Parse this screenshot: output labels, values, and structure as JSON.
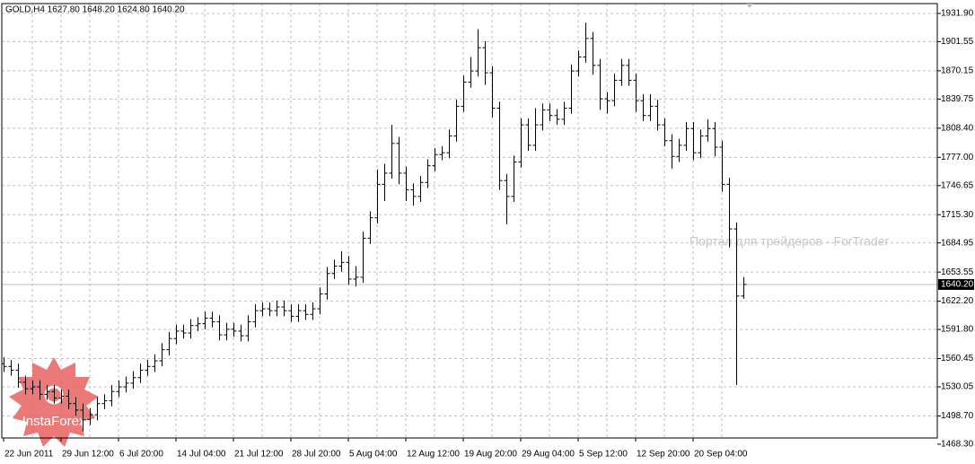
{
  "chart_data": {
    "type": "ohlc",
    "header": "GOLD,H4  1627.80 1648.20 1624.80 1640.20",
    "watermark": "Портал для трейдеров - ForTrader",
    "logo": "InstaForex",
    "categories": [
      "22 Jun 2011",
      null,
      null,
      null,
      null,
      null,
      null,
      null,
      "29 Jun 12:00",
      null,
      null,
      null,
      null,
      null,
      null,
      null,
      "6 Jul 20:00",
      null,
      null,
      null,
      null,
      null,
      null,
      null,
      "14 Jul 04:00",
      null,
      null,
      null,
      null,
      null,
      null,
      null,
      "21 Jul 12:00",
      null,
      null,
      null,
      null,
      null,
      null,
      null,
      "28 Jul 20:00",
      null,
      null,
      null,
      null,
      null,
      null,
      null,
      "5 Aug 04:00",
      null,
      null,
      null,
      null,
      null,
      null,
      null,
      "12 Aug 12:00",
      null,
      null,
      null,
      null,
      null,
      null,
      null,
      "19 Aug 20:00",
      null,
      null,
      null,
      null,
      null,
      null,
      null,
      "29 Aug 04:00",
      null,
      null,
      null,
      null,
      null,
      null,
      null,
      "5 Sep 12:00",
      null,
      null,
      null,
      null,
      null,
      null,
      null,
      "12 Sep 20:00",
      null,
      null,
      null,
      null,
      null,
      null,
      null,
      "20 Sep 04:00",
      null,
      null,
      null,
      null,
      null,
      null,
      null
    ],
    "open": [
      1555,
      1552,
      1548,
      1535,
      1528,
      1530,
      1522,
      1525,
      1518,
      1520,
      1512,
      1505,
      1495,
      1500,
      1512,
      1515,
      1525,
      1530,
      1534,
      1540,
      1548,
      1552,
      1558,
      1570,
      1582,
      1590,
      1588,
      1596,
      1598,
      1604,
      1600,
      1586,
      1592,
      1590,
      1585,
      1600,
      1612,
      1614,
      1612,
      1616,
      1612,
      1606,
      1612,
      1608,
      1614,
      1630,
      1652,
      1660,
      1664,
      1646,
      1648,
      1690,
      1712,
      1748,
      1760,
      1792,
      1760,
      1742,
      1735,
      1750,
      1768,
      1780,
      1782,
      1800,
      1832,
      1858,
      1870,
      1895,
      1868,
      1830,
      1752,
      1735,
      1772,
      1812,
      1790,
      1812,
      1828,
      1822,
      1818,
      1830,
      1870,
      1885,
      1905,
      1876,
      1840,
      1838,
      1860,
      1876,
      1860,
      1838,
      1822,
      1832,
      1812,
      1795,
      1778,
      1790,
      1808,
      1782,
      1800,
      1808,
      1788,
      1748,
      1700,
      1627.8
    ],
    "high": [
      1562,
      1559,
      1555,
      1542,
      1537,
      1537,
      1532,
      1532,
      1527,
      1527,
      1519,
      1512,
      1507,
      1519,
      1522,
      1532,
      1537,
      1541,
      1547,
      1555,
      1559,
      1565,
      1577,
      1589,
      1597,
      1597,
      1603,
      1605,
      1611,
      1611,
      1607,
      1599,
      1599,
      1597,
      1607,
      1619,
      1621,
      1621,
      1623,
      1623,
      1619,
      1619,
      1619,
      1621,
      1637,
      1659,
      1667,
      1676,
      1671,
      1660,
      1697,
      1719,
      1764,
      1770,
      1812,
      1799,
      1767,
      1749,
      1757,
      1775,
      1787,
      1789,
      1807,
      1839,
      1865,
      1885,
      1915,
      1902,
      1875,
      1837,
      1759,
      1779,
      1819,
      1819,
      1830,
      1835,
      1835,
      1829,
      1837,
      1877,
      1892,
      1922,
      1912,
      1883,
      1847,
      1867,
      1883,
      1883,
      1867,
      1845,
      1845,
      1839,
      1819,
      1802,
      1797,
      1815,
      1815,
      1807,
      1818,
      1815,
      1795,
      1755,
      1707,
      1648.2
    ],
    "low": [
      1546,
      1542,
      1529,
      1522,
      1522,
      1516,
      1516,
      1512,
      1512,
      1506,
      1499,
      1482,
      1489,
      1494,
      1506,
      1509,
      1519,
      1524,
      1528,
      1534,
      1542,
      1546,
      1552,
      1564,
      1576,
      1582,
      1582,
      1590,
      1592,
      1594,
      1580,
      1580,
      1584,
      1579,
      1579,
      1594,
      1606,
      1606,
      1606,
      1606,
      1600,
      1600,
      1602,
      1602,
      1608,
      1624,
      1646,
      1654,
      1640,
      1638,
      1642,
      1684,
      1706,
      1730,
      1754,
      1748,
      1730,
      1725,
      1729,
      1744,
      1762,
      1774,
      1776,
      1794,
      1826,
      1852,
      1864,
      1855,
      1820,
      1742,
      1705,
      1729,
      1766,
      1784,
      1784,
      1806,
      1816,
      1812,
      1812,
      1824,
      1864,
      1879,
      1866,
      1828,
      1824,
      1832,
      1854,
      1854,
      1826,
      1816,
      1816,
      1806,
      1789,
      1765,
      1772,
      1784,
      1774,
      1776,
      1794,
      1778,
      1740,
      1680,
      1532,
      1624.8
    ],
    "close": [
      1552,
      1548,
      1535,
      1528,
      1530,
      1522,
      1525,
      1518,
      1520,
      1512,
      1505,
      1495,
      1500,
      1512,
      1515,
      1525,
      1530,
      1534,
      1540,
      1548,
      1552,
      1558,
      1570,
      1582,
      1590,
      1588,
      1596,
      1598,
      1604,
      1600,
      1586,
      1592,
      1590,
      1585,
      1600,
      1612,
      1614,
      1612,
      1616,
      1612,
      1606,
      1612,
      1608,
      1614,
      1630,
      1652,
      1660,
      1664,
      1646,
      1648,
      1690,
      1712,
      1748,
      1760,
      1792,
      1760,
      1742,
      1735,
      1750,
      1768,
      1780,
      1782,
      1800,
      1832,
      1858,
      1870,
      1895,
      1868,
      1830,
      1752,
      1735,
      1772,
      1812,
      1790,
      1812,
      1828,
      1822,
      1818,
      1830,
      1870,
      1885,
      1905,
      1876,
      1840,
      1838,
      1860,
      1876,
      1860,
      1838,
      1822,
      1832,
      1812,
      1795,
      1778,
      1790,
      1808,
      1782,
      1800,
      1808,
      1788,
      1748,
      1700,
      1627.8,
      1640.2
    ],
    "color": "#000000",
    "ylim": [
      1475,
      1942.5
    ],
    "yticks": [
      {
        "value": 1931.9,
        "label": "1931.90"
      },
      {
        "value": 1901.55,
        "label": "1901.55"
      },
      {
        "value": 1870.15,
        "label": "1870.15"
      },
      {
        "value": 1839.75,
        "label": "1839.75"
      },
      {
        "value": 1808.4,
        "label": "1808.40"
      },
      {
        "value": 1777,
        "label": "1777.00"
      },
      {
        "value": 1746.65,
        "label": "1746.65"
      },
      {
        "value": 1715.3,
        "label": "1715.30"
      },
      {
        "value": 1684.95,
        "label": "1684.95"
      },
      {
        "value": 1653.55,
        "label": "1653.55"
      },
      {
        "value": 1622.2,
        "label": "1622.20"
      },
      {
        "value": 1591.8,
        "label": "1591.80"
      },
      {
        "value": 1560.45,
        "label": "1560.45"
      },
      {
        "value": 1530.05,
        "label": "1530.05"
      },
      {
        "value": 1498.7,
        "label": "1498.70"
      },
      {
        "value": 1468.3,
        "label": "1468.30"
      }
    ],
    "last_price": {
      "value": 1640.2,
      "label": "1640.20"
    },
    "grid": true
  }
}
